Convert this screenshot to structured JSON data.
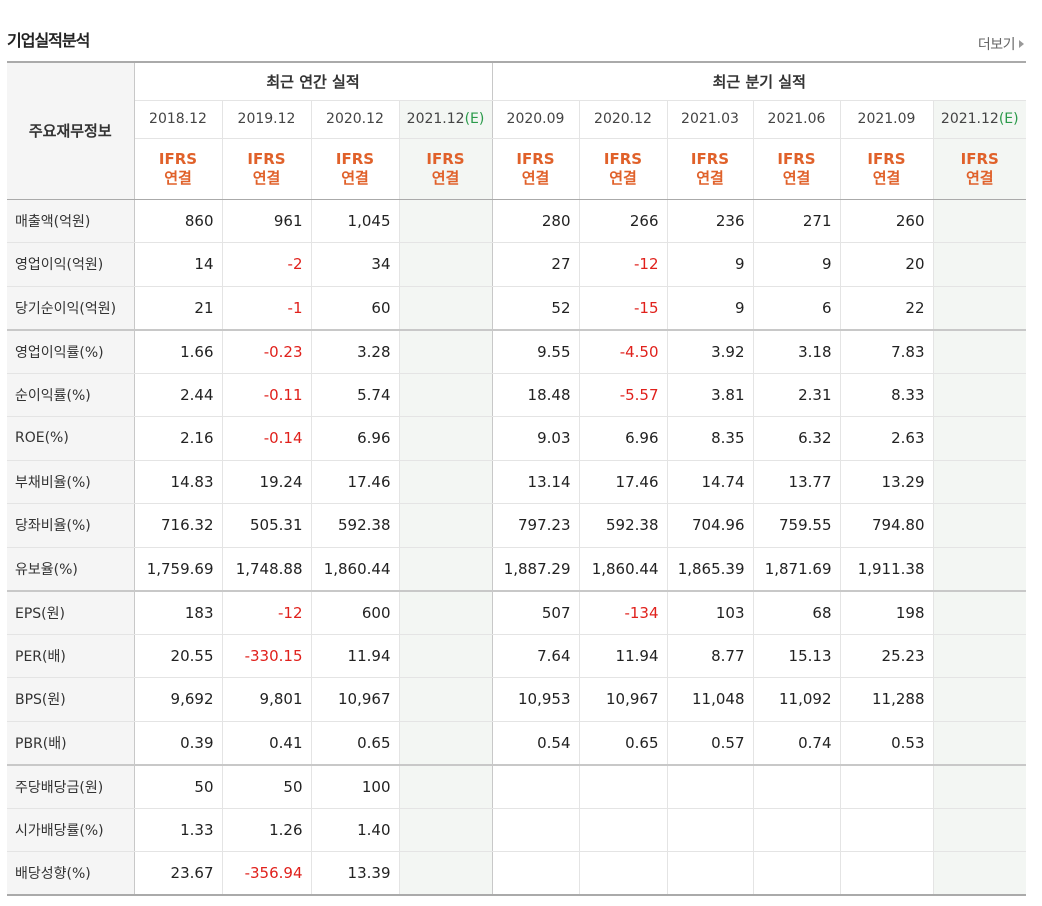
{
  "header": {
    "title": "기업실적분석",
    "more_label": "더보기"
  },
  "table": {
    "row_header": "주요재무정보",
    "group_annual": "최근 연간 실적",
    "group_quarter": "최근 분기 실적",
    "periods": [
      {
        "period": "2018.12",
        "est": "",
        "accounting": "IFRS",
        "basis": "연결"
      },
      {
        "period": "2019.12",
        "est": "",
        "accounting": "IFRS",
        "basis": "연결"
      },
      {
        "period": "2020.12",
        "est": "",
        "accounting": "IFRS",
        "basis": "연결"
      },
      {
        "period": "2021.12",
        "est": "(E)",
        "accounting": "IFRS",
        "basis": "연결"
      },
      {
        "period": "2020.09",
        "est": "",
        "accounting": "IFRS",
        "basis": "연결"
      },
      {
        "period": "2020.12",
        "est": "",
        "accounting": "IFRS",
        "basis": "연결"
      },
      {
        "period": "2021.03",
        "est": "",
        "accounting": "IFRS",
        "basis": "연결"
      },
      {
        "period": "2021.06",
        "est": "",
        "accounting": "IFRS",
        "basis": "연결"
      },
      {
        "period": "2021.09",
        "est": "",
        "accounting": "IFRS",
        "basis": "연결"
      },
      {
        "period": "2021.12",
        "est": "(E)",
        "accounting": "IFRS",
        "basis": "연결"
      }
    ],
    "rows": [
      {
        "label": "매출액(억원)",
        "values": [
          "860",
          "961",
          "1,045",
          "",
          "280",
          "266",
          "236",
          "271",
          "260",
          ""
        ]
      },
      {
        "label": "영업이익(억원)",
        "values": [
          "14",
          "-2",
          "34",
          "",
          "27",
          "-12",
          "9",
          "9",
          "20",
          ""
        ]
      },
      {
        "label": "당기순이익(억원)",
        "values": [
          "21",
          "-1",
          "60",
          "",
          "52",
          "-15",
          "9",
          "6",
          "22",
          ""
        ]
      },
      {
        "label": "영업이익률(%)",
        "values": [
          "1.66",
          "-0.23",
          "3.28",
          "",
          "9.55",
          "-4.50",
          "3.92",
          "3.18",
          "7.83",
          ""
        ]
      },
      {
        "label": "순이익률(%)",
        "values": [
          "2.44",
          "-0.11",
          "5.74",
          "",
          "18.48",
          "-5.57",
          "3.81",
          "2.31",
          "8.33",
          ""
        ]
      },
      {
        "label": "ROE(%)",
        "values": [
          "2.16",
          "-0.14",
          "6.96",
          "",
          "9.03",
          "6.96",
          "8.35",
          "6.32",
          "2.63",
          ""
        ]
      },
      {
        "label": "부채비율(%)",
        "values": [
          "14.83",
          "19.24",
          "17.46",
          "",
          "13.14",
          "17.46",
          "14.74",
          "13.77",
          "13.29",
          ""
        ]
      },
      {
        "label": "당좌비율(%)",
        "values": [
          "716.32",
          "505.31",
          "592.38",
          "",
          "797.23",
          "592.38",
          "704.96",
          "759.55",
          "794.80",
          ""
        ]
      },
      {
        "label": "유보율(%)",
        "values": [
          "1,759.69",
          "1,748.88",
          "1,860.44",
          "",
          "1,887.29",
          "1,860.44",
          "1,865.39",
          "1,871.69",
          "1,911.38",
          ""
        ]
      },
      {
        "label": "EPS(원)",
        "values": [
          "183",
          "-12",
          "600",
          "",
          "507",
          "-134",
          "103",
          "68",
          "198",
          ""
        ]
      },
      {
        "label": "PER(배)",
        "values": [
          "20.55",
          "-330.15",
          "11.94",
          "",
          "7.64",
          "11.94",
          "8.77",
          "15.13",
          "25.23",
          ""
        ]
      },
      {
        "label": "BPS(원)",
        "values": [
          "9,692",
          "9,801",
          "10,967",
          "",
          "10,953",
          "10,967",
          "11,048",
          "11,092",
          "11,288",
          ""
        ]
      },
      {
        "label": "PBR(배)",
        "values": [
          "0.39",
          "0.41",
          "0.65",
          "",
          "0.54",
          "0.65",
          "0.57",
          "0.74",
          "0.53",
          ""
        ]
      },
      {
        "label": "주당배당금(원)",
        "values": [
          "50",
          "50",
          "100",
          "",
          "",
          "",
          "",
          "",
          "",
          ""
        ]
      },
      {
        "label": "시가배당률(%)",
        "values": [
          "1.33",
          "1.26",
          "1.40",
          "",
          "",
          "",
          "",
          "",
          "",
          ""
        ]
      },
      {
        "label": "배당성향(%)",
        "values": [
          "23.67",
          "-356.94",
          "13.39",
          "",
          "",
          "",
          "",
          "",
          "",
          ""
        ]
      }
    ]
  }
}
